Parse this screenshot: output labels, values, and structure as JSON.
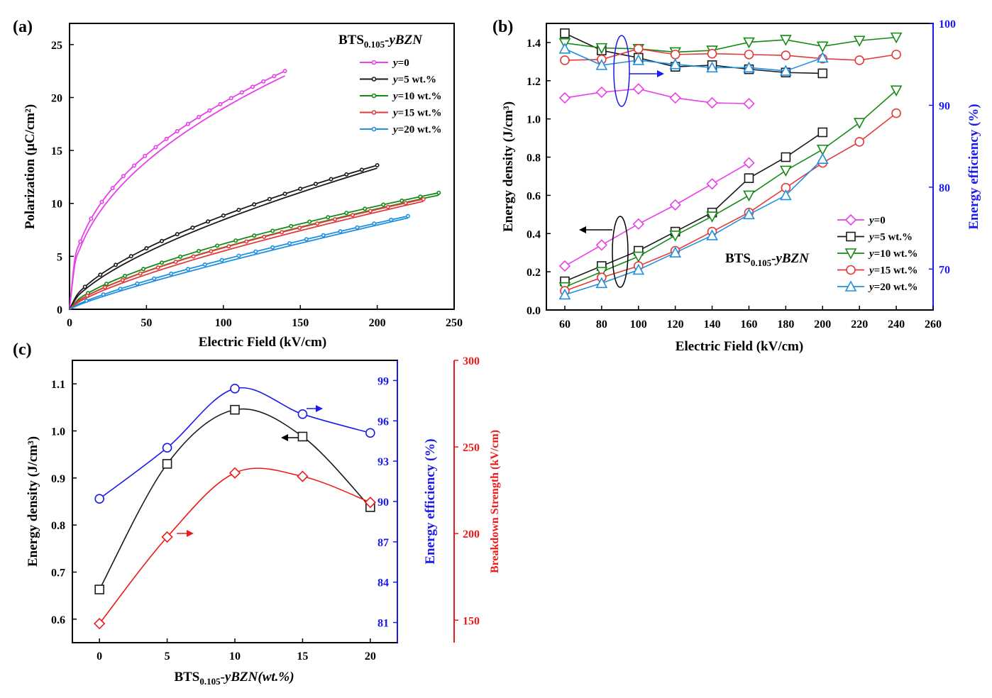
{
  "chart_data": [
    {
      "panel": "(a)",
      "type": "line",
      "title": "BTS0.105-yBZN",
      "title_main": "BTS",
      "title_sub": "0.105",
      "title_tail": "-yBZN",
      "xlabel": "Electric Field (kV/cm)",
      "ylabel": "Polarization (μC/cm²)",
      "xlim": [
        0,
        250
      ],
      "ylim": [
        0,
        27
      ],
      "xticks": [
        0,
        50,
        100,
        150,
        200,
        250
      ],
      "yticks": [
        0,
        5,
        10,
        15,
        20,
        25
      ],
      "legend_position": "top-right",
      "series": [
        {
          "name": "y=0",
          "legend_y": "y",
          "legend_rest": "=0",
          "color": "#e83fe8",
          "emax": 140,
          "pmax": 22.5,
          "k": 0.42
        },
        {
          "name": "y=5 wt.%",
          "legend_y": "y",
          "legend_rest": "=5 wt.%",
          "color": "#1a1a1a",
          "emax": 200,
          "pmax": 13.6,
          "k": 0.62
        },
        {
          "name": "y=10 wt.%",
          "legend_y": "y",
          "legend_rest": "=10 wt.%",
          "color": "#148a14",
          "emax": 240,
          "pmax": 11.0,
          "k": 0.66
        },
        {
          "name": "y=15 wt.%",
          "legend_y": "y",
          "legend_rest": "=15 wt.%",
          "color": "#e23a3a",
          "emax": 230,
          "pmax": 10.4,
          "k": 0.7
        },
        {
          "name": "y=20 wt.%",
          "legend_y": "y",
          "legend_rest": "=20 wt.%",
          "color": "#1f8fe0",
          "emax": 220,
          "pmax": 8.8,
          "k": 0.8
        }
      ]
    },
    {
      "panel": "(b)",
      "type": "line",
      "title": "BTS0.105-yBZN",
      "title_main": "BTS",
      "title_sub": "0.105",
      "title_tail": "-yBZN",
      "xlabel": "Electric Field (kV/cm)",
      "ylabel": "Energy density (J/cm³)",
      "ylabel_right": "Energy efficiency (%)",
      "xlim": [
        50,
        260
      ],
      "ylim": [
        0,
        1.5
      ],
      "ylim_right": [
        65,
        100
      ],
      "xticks": [
        60,
        80,
        100,
        120,
        140,
        160,
        180,
        200,
        220,
        240,
        260
      ],
      "yticks": [
        0.0,
        0.2,
        0.4,
        0.6,
        0.8,
        1.0,
        1.2,
        1.4
      ],
      "yticks_right": [
        70,
        80,
        90,
        100
      ],
      "legend_position": "bottom-right",
      "series": [
        {
          "name": "y=0",
          "legend_y": "y",
          "legend_rest": "=0",
          "color": "#e83fe8",
          "marker": "diamond",
          "x": [
            60,
            80,
            100,
            120,
            140,
            160
          ],
          "density": [
            0.23,
            0.34,
            0.45,
            0.55,
            0.66,
            0.77
          ],
          "efficiency": [
            90.9,
            91.6,
            92.0,
            90.9,
            90.3,
            90.2
          ]
        },
        {
          "name": "y=5 wt.%",
          "legend_y": "y",
          "legend_rest": "=5 wt.%",
          "color": "#1a1a1a",
          "marker": "square",
          "x": [
            60,
            80,
            100,
            120,
            140,
            160,
            180,
            200
          ],
          "density": [
            0.15,
            0.23,
            0.31,
            0.41,
            0.51,
            0.69,
            0.8,
            0.93
          ],
          "efficiency": [
            98.8,
            96.7,
            95.8,
            94.7,
            94.9,
            94.4,
            94.0,
            93.9
          ]
        },
        {
          "name": "y=10 wt.%",
          "legend_y": "y",
          "legend_rest": "=10 wt.%",
          "color": "#148a14",
          "marker": "triangle-down",
          "x": [
            60,
            80,
            100,
            120,
            140,
            160,
            180,
            200,
            220,
            240
          ],
          "density": [
            0.12,
            0.2,
            0.28,
            0.39,
            0.49,
            0.6,
            0.73,
            0.84,
            0.98,
            1.15
          ],
          "efficiency": [
            97.6,
            97.0,
            96.9,
            96.5,
            96.7,
            97.7,
            98.0,
            97.2,
            97.9,
            98.3
          ]
        },
        {
          "name": "y=15 wt.%",
          "legend_y": "y",
          "legend_rest": "=15 wt.%",
          "color": "#e23a3a",
          "marker": "circle",
          "x": [
            60,
            80,
            100,
            120,
            140,
            160,
            180,
            200,
            220,
            240
          ],
          "density": [
            0.1,
            0.17,
            0.23,
            0.31,
            0.41,
            0.51,
            0.64,
            0.77,
            0.88,
            1.03
          ],
          "efficiency": [
            95.5,
            95.6,
            96.9,
            96.2,
            96.3,
            96.2,
            96.1,
            95.7,
            95.5,
            96.2
          ]
        },
        {
          "name": "y=20 wt.%",
          "legend_y": "y",
          "legend_rest": "=20 wt.%",
          "color": "#1f8fe0",
          "marker": "triangle-up",
          "x": [
            60,
            80,
            100,
            120,
            140,
            160,
            180,
            200
          ],
          "density": [
            0.08,
            0.14,
            0.21,
            0.3,
            0.39,
            0.5,
            0.6,
            0.79
          ],
          "efficiency": [
            96.9,
            94.9,
            95.5,
            95.0,
            94.6,
            94.6,
            94.2,
            95.8
          ]
        }
      ]
    },
    {
      "panel": "(c)",
      "type": "line",
      "xlabel": "BTS0.105-yBZN(wt.%)",
      "xlabel_main": "BTS",
      "xlabel_sub": "0.105",
      "xlabel_tail": "-yBZN(wt.%)",
      "ylabel": "Energy density (J/cm³)",
      "ylabel_right1": "Energy efficiency (%)",
      "ylabel_right2": "Breakdown Strength (kV/cm)",
      "x": [
        0,
        5,
        10,
        15,
        20
      ],
      "xlim": [
        -2,
        22
      ],
      "ylim": [
        0.55,
        1.15
      ],
      "ylim_right1": [
        79.5,
        100.5
      ],
      "ylim_right2": [
        137,
        300
      ],
      "xticks": [
        0,
        5,
        10,
        15,
        20
      ],
      "yticks": [
        0.6,
        0.7,
        0.8,
        0.9,
        1.0,
        1.1
      ],
      "yticks_right1": [
        81,
        84,
        87,
        90,
        93,
        96,
        99
      ],
      "yticks_right2": [
        150,
        200,
        250,
        300
      ],
      "series": [
        {
          "name": "Energy density",
          "axis": "left",
          "color": "#1a1a1a",
          "marker": "square",
          "values": [
            0.663,
            0.93,
            1.045,
            0.988,
            0.838
          ]
        },
        {
          "name": "Energy efficiency",
          "axis": "right1",
          "color": "#1a1aee",
          "marker": "circle",
          "values": [
            90.2,
            94.0,
            98.4,
            96.5,
            95.1
          ]
        },
        {
          "name": "Breakdown Strength",
          "axis": "right2",
          "color": "#ee1a1a",
          "marker": "diamond",
          "values": [
            148,
            198,
            235,
            233,
            218
          ]
        }
      ]
    }
  ]
}
